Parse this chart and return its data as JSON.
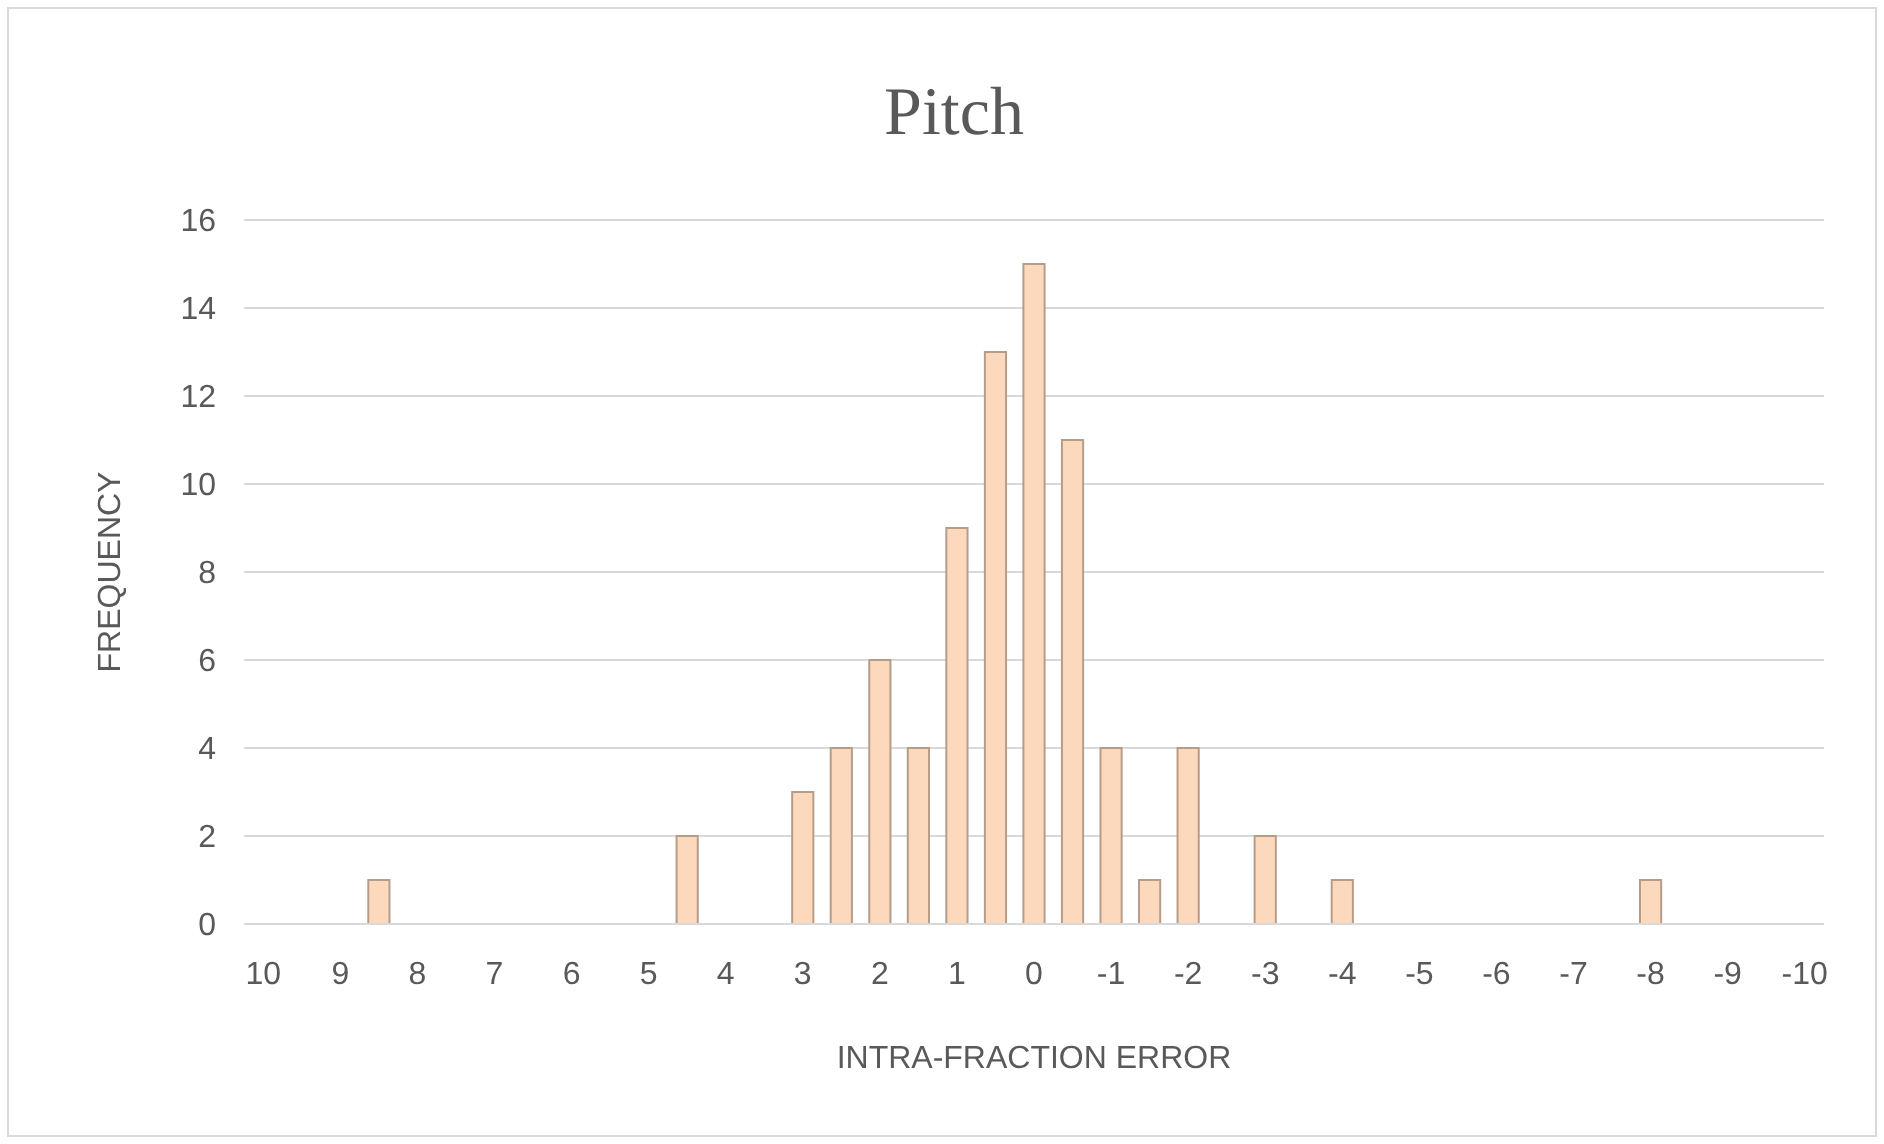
{
  "chart_data": {
    "type": "bar",
    "title": "Pitch",
    "xlabel": "INTRA-FRACTION ERROR",
    "ylabel": "FREQUENCY",
    "categories": [
      "10",
      null,
      "9",
      null,
      "8",
      null,
      "7",
      null,
      "6",
      null,
      "5",
      null,
      "4",
      null,
      "3",
      null,
      "2",
      null,
      "1",
      null,
      "0",
      null,
      "-1",
      null,
      "-2",
      null,
      "-3",
      null,
      "-4",
      null,
      "-5",
      null,
      "-6",
      null,
      "-7",
      null,
      "-8",
      null,
      "-9",
      null,
      "-10"
    ],
    "values": [
      0,
      0,
      0,
      1,
      0,
      0,
      0,
      0,
      0,
      0,
      0,
      2,
      0,
      0,
      3,
      4,
      6,
      4,
      9,
      13,
      15,
      11,
      4,
      1,
      4,
      0,
      2,
      0,
      1,
      0,
      0,
      0,
      0,
      0,
      0,
      0,
      1,
      0,
      0,
      0,
      0
    ],
    "color": "#fcd9bd",
    "ylim": [
      0,
      16
    ],
    "yticks": [
      0,
      2,
      4,
      6,
      8,
      10,
      12,
      14,
      16
    ],
    "grid": "y"
  }
}
